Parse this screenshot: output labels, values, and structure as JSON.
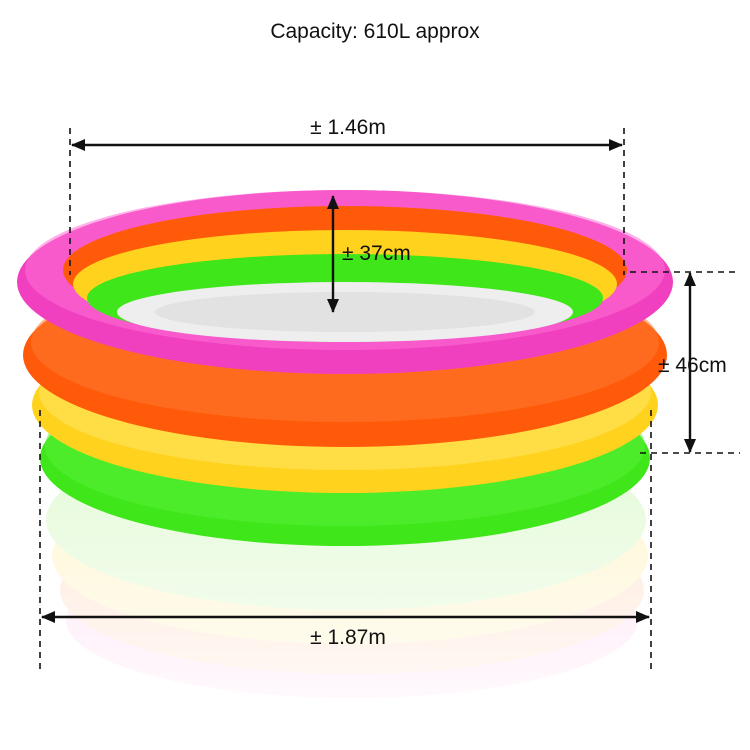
{
  "capacity_label": "Capacity: 610L approx",
  "dimensions": {
    "inner_diameter": "± 1.46m",
    "ring_height": "± 37cm",
    "pool_height": "± 46cm",
    "outer_diameter": "± 1.87m"
  },
  "ring_colors": {
    "pink": "#f040c0",
    "orange": "#ff5a0a",
    "yellow": "#ffd21e",
    "green": "#3ee61a",
    "floor": "#eeeeee"
  },
  "line_color": "#111111"
}
